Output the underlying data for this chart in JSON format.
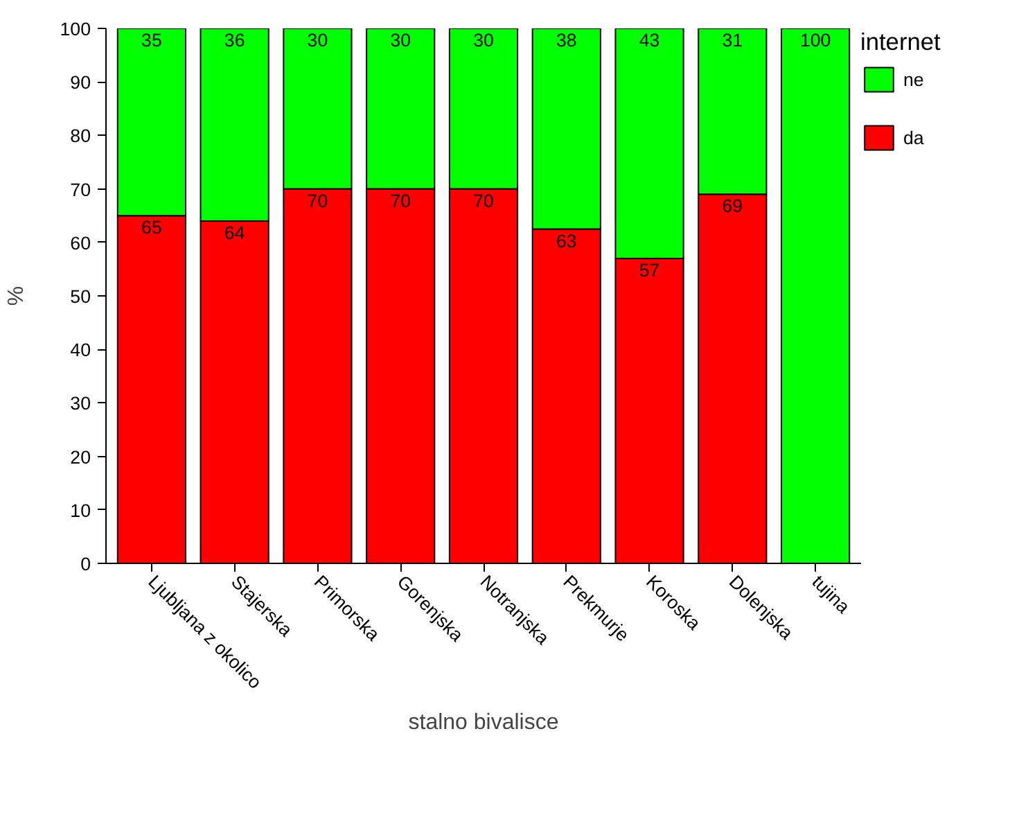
{
  "chart_data": {
    "type": "bar",
    "stacked": true,
    "xlabel": "stalno bivalisce",
    "ylabel": "%",
    "legend_title": "internet",
    "legend": "right",
    "grid": false,
    "categories": [
      "Ljubljana z okolico",
      "Stajerska",
      "Primorska",
      "Gorenjska",
      "Notranjska",
      "Prekmurje",
      "Koroska",
      "Dolenjska",
      "tujina"
    ],
    "ylim": [
      0,
      100
    ],
    "yticks": [
      0,
      10,
      20,
      30,
      40,
      50,
      60,
      70,
      80,
      90,
      100
    ],
    "series": [
      {
        "name": "da",
        "color": "#ff0000",
        "values": [
          65,
          64,
          70,
          70,
          70,
          62.5,
          57,
          69,
          0
        ],
        "value_labels": [
          "65",
          "64",
          "70",
          "70",
          "70",
          "63",
          "57",
          "69",
          null
        ]
      },
      {
        "name": "ne",
        "color": "#00ff00",
        "values": [
          35,
          36,
          30,
          30,
          30,
          37.5,
          43,
          31,
          100
        ],
        "value_labels": [
          "35",
          "36",
          "30",
          "30",
          "30",
          "38",
          "43",
          "31",
          "100"
        ]
      }
    ]
  }
}
